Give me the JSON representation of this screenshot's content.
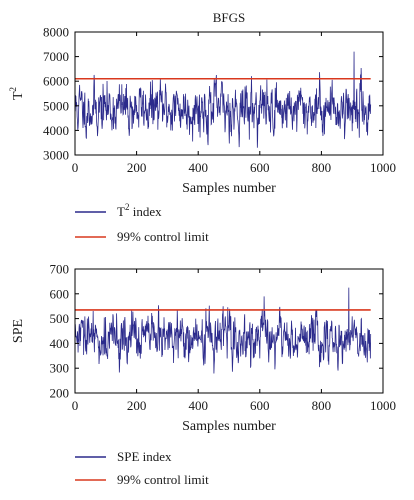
{
  "colors": {
    "series": "#2b2a8c",
    "limit": "#d9381e",
    "axis": "#000000"
  },
  "chart_data": [
    {
      "type": "line",
      "title": "BFGS",
      "xlabel": "Samples number",
      "ylabel_base": "T",
      "ylabel_sup": "2",
      "xlim": [
        0,
        1000
      ],
      "ylim": [
        3000,
        8000
      ],
      "xticks": [
        "0",
        "200",
        "400",
        "600",
        "800",
        "1000"
      ],
      "yticks": [
        "3000",
        "4000",
        "5000",
        "6000",
        "7000",
        "8000"
      ],
      "control_limit": 6100,
      "series_stats": {
        "n": 960,
        "mean": 4900,
        "sd": 520,
        "min": 3150,
        "max": 7200,
        "peak_at": 905
      },
      "legend": {
        "series_base": "T",
        "series_sup": "2",
        "series_rest": " index",
        "limit": "99% control limit"
      }
    },
    {
      "type": "line",
      "title": "",
      "xlabel": "Samples number",
      "ylabel_base": "SPE",
      "ylabel_sup": "",
      "xlim": [
        0,
        1000
      ],
      "ylim": [
        200,
        700
      ],
      "xticks": [
        "0",
        "200",
        "400",
        "600",
        "800",
        "1000"
      ],
      "yticks": [
        "200",
        "300",
        "400",
        "500",
        "600",
        "700"
      ],
      "control_limit": 535,
      "series_stats": {
        "n": 960,
        "mean": 420,
        "sd": 48,
        "min": 275,
        "max": 625,
        "peak_at": 888
      },
      "legend": {
        "series_base": "SPE",
        "series_sup": "",
        "series_rest": " index",
        "limit": "99% control limit"
      }
    }
  ]
}
